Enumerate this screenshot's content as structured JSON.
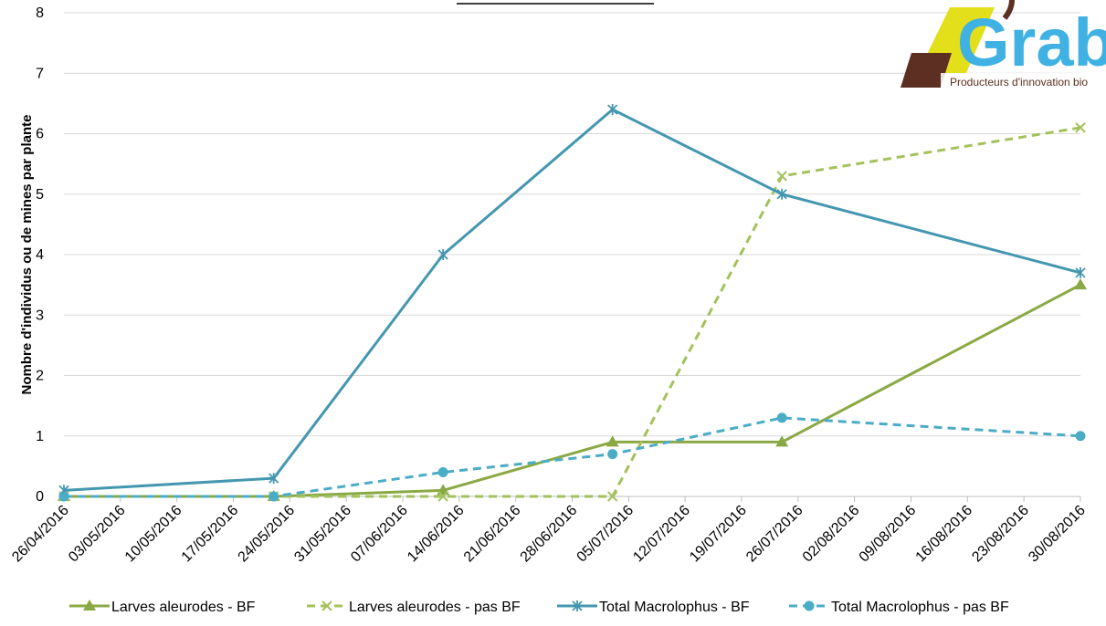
{
  "logo": {
    "name": "Grab",
    "tagline": "Producteurs d'innovation bio",
    "colors": {
      "yellow": "#e3df1a",
      "brown": "#5c2f22",
      "blue": "#3fb1e3"
    }
  },
  "chart_data": {
    "type": "line",
    "title": "",
    "xlabel": "",
    "ylabel": "Nombre d'individus ou de mines par plante",
    "ylim": [
      0,
      8
    ],
    "yticks": [
      "0",
      "1",
      "2",
      "3",
      "4",
      "5",
      "6",
      "7",
      "8"
    ],
    "xlim": [
      "2016-04-26",
      "2016-08-30"
    ],
    "xticks": [
      "26/04/2016",
      "03/05/2016",
      "10/05/2016",
      "17/05/2016",
      "24/05/2016",
      "31/05/2016",
      "07/06/2016",
      "14/06/2016",
      "21/06/2016",
      "28/06/2016",
      "05/07/2016",
      "12/07/2016",
      "19/07/2016",
      "26/07/2016",
      "02/08/2016",
      "09/08/2016",
      "16/08/2016",
      "23/08/2016",
      "30/08/2016"
    ],
    "grid": "horizontal",
    "legend_position": "bottom",
    "series": [
      {
        "name": "Larves aleurodes - BF",
        "color": "#8aa944",
        "style": "solid",
        "marker": "triangle",
        "points": [
          {
            "x": "2016-04-26",
            "y": 0
          },
          {
            "x": "2016-05-22",
            "y": 0
          },
          {
            "x": "2016-06-12",
            "y": 0.1
          },
          {
            "x": "2016-07-03",
            "y": 0.9
          },
          {
            "x": "2016-07-24",
            "y": 0.9
          },
          {
            "x": "2016-08-30",
            "y": 3.5
          }
        ]
      },
      {
        "name": "Larves aleurodes - pas BF",
        "color": "#a4c25c",
        "style": "dashed",
        "marker": "x",
        "points": [
          {
            "x": "2016-04-26",
            "y": 0
          },
          {
            "x": "2016-05-22",
            "y": 0
          },
          {
            "x": "2016-06-12",
            "y": 0
          },
          {
            "x": "2016-07-03",
            "y": 0
          },
          {
            "x": "2016-07-24",
            "y": 5.3
          },
          {
            "x": "2016-08-30",
            "y": 6.1
          }
        ]
      },
      {
        "name": "Total Macrolophus - BF",
        "color": "#4497b0",
        "style": "solid",
        "marker": "star",
        "points": [
          {
            "x": "2016-04-26",
            "y": 0.1
          },
          {
            "x": "2016-05-22",
            "y": 0.3
          },
          {
            "x": "2016-06-12",
            "y": 4.0
          },
          {
            "x": "2016-07-03",
            "y": 6.4
          },
          {
            "x": "2016-07-24",
            "y": 5.0
          },
          {
            "x": "2016-08-30",
            "y": 3.7
          }
        ]
      },
      {
        "name": "Total Macrolophus - pas BF",
        "color": "#4bacc6",
        "style": "dashed",
        "marker": "circle",
        "points": [
          {
            "x": "2016-04-26",
            "y": 0
          },
          {
            "x": "2016-05-22",
            "y": 0
          },
          {
            "x": "2016-06-12",
            "y": 0.4
          },
          {
            "x": "2016-07-03",
            "y": 0.7
          },
          {
            "x": "2016-07-24",
            "y": 1.3
          },
          {
            "x": "2016-08-30",
            "y": 1.0
          }
        ]
      }
    ]
  }
}
